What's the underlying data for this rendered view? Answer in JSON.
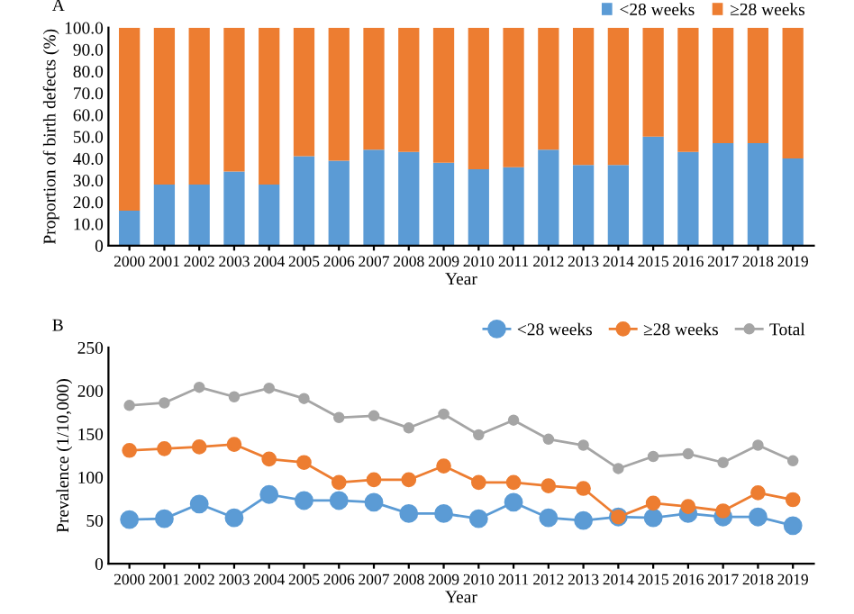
{
  "chart_data": [
    {
      "type": "bar",
      "title": "A",
      "stacked": true,
      "xlabel": "Year",
      "ylabel": "Proportion of birth defects (%)",
      "categories": [
        "2000",
        "2001",
        "2002",
        "2003",
        "2004",
        "2005",
        "2006",
        "2007",
        "2008",
        "2009",
        "2010",
        "2011",
        "2012",
        "2013",
        "2014",
        "2015",
        "2016",
        "2017",
        "2018",
        "2019"
      ],
      "series": [
        {
          "name": "<28 weeks",
          "color": "#5b9bd5",
          "values": [
            16,
            28,
            28,
            34,
            28,
            41,
            39,
            44,
            43,
            38,
            35,
            36,
            44,
            37,
            37,
            50,
            43,
            47,
            47,
            40
          ]
        },
        {
          "name": "≥28 weeks",
          "color": "#ed7d31",
          "values": [
            84,
            72,
            72,
            66,
            72,
            59,
            61,
            56,
            57,
            62,
            65,
            64,
            56,
            63,
            63,
            50,
            57,
            53,
            53,
            60
          ]
        }
      ],
      "ylim": [
        0,
        100
      ],
      "yticks": [
        {
          "value": 0,
          "label": "0"
        },
        {
          "value": 10,
          "label": "10.0"
        },
        {
          "value": 20,
          "label": "20.0"
        },
        {
          "value": 30,
          "label": "30.0"
        },
        {
          "value": 40,
          "label": "40.0"
        },
        {
          "value": 50,
          "label": "50.0"
        },
        {
          "value": 60,
          "label": "60.0"
        },
        {
          "value": 70,
          "label": "70.0"
        },
        {
          "value": 80,
          "label": "80.0"
        },
        {
          "value": 90,
          "label": "90.0"
        },
        {
          "value": 100,
          "label": "100.0"
        }
      ],
      "legend": "top right",
      "grid": false
    },
    {
      "type": "line",
      "title": "B",
      "xlabel": "Year",
      "ylabel": "Prevalence (1/10,000)",
      "marker": "circle",
      "categories": [
        "2000",
        "2001",
        "2002",
        "2003",
        "2004",
        "2005",
        "2006",
        "2007",
        "2008",
        "2009",
        "2010",
        "2011",
        "2012",
        "2013",
        "2014",
        "2015",
        "2016",
        "2017",
        "2018",
        "2019"
      ],
      "series": [
        {
          "name": "<28 weeks",
          "color": "#5b9bd5",
          "values": [
            51,
            52,
            69,
            53,
            80,
            73,
            73,
            71,
            58,
            58,
            52,
            71,
            53,
            50,
            54,
            53,
            58,
            54,
            54,
            44
          ]
        },
        {
          "name": "≥28 weeks",
          "color": "#ed7d31",
          "values": [
            131,
            133,
            135,
            138,
            121,
            117,
            94,
            97,
            97,
            113,
            94,
            94,
            90,
            87,
            54,
            70,
            66,
            61,
            82,
            74
          ]
        },
        {
          "name": "Total",
          "color": "#a5a5a5",
          "values": [
            183,
            186,
            204,
            193,
            203,
            191,
            169,
            171,
            157,
            173,
            149,
            166,
            144,
            137,
            110,
            124,
            127,
            117,
            137,
            119
          ]
        }
      ],
      "ylim": [
        0,
        250
      ],
      "yticks": [
        0,
        50,
        100,
        150,
        200,
        250
      ],
      "legend": "top right",
      "grid": false
    }
  ]
}
